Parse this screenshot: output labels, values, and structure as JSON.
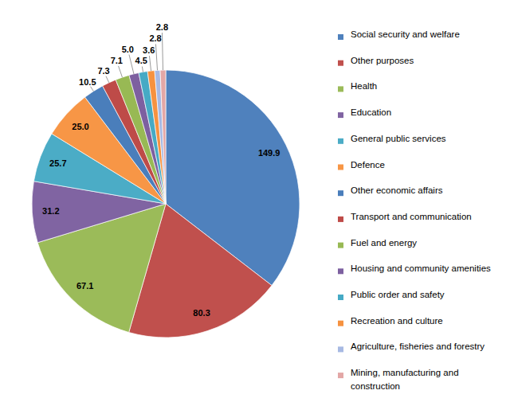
{
  "chart_data": {
    "type": "pie",
    "categories": [
      "Social security and welfare",
      "Other purposes",
      "Health",
      "Education",
      "General public services",
      "Defence",
      "Other economic affairs",
      "Transport and communication",
      "Fuel and energy",
      "Housing and community amenities",
      "Public order and safety",
      "Recreation and culture",
      "Agriculture, fisheries and forestry",
      "Mining, manufacturing and construction"
    ],
    "values": [
      149.9,
      80.3,
      67.1,
      31.2,
      25.7,
      25.0,
      10.5,
      7.3,
      7.1,
      5.0,
      4.5,
      3.6,
      2.8,
      2.8
    ],
    "value_labels": [
      "149.9",
      "80.3",
      "67.1",
      "31.2",
      "25.7",
      "25.0",
      "10.5",
      "7.3",
      "7.1",
      "5.0",
      "4.5",
      "3.6",
      "2.8",
      "2.8"
    ],
    "colors": [
      "#4f81bd",
      "#c0504d",
      "#9bbb59",
      "#8064a2",
      "#4bacc6",
      "#f79646",
      "#4a7ebb",
      "#be4b48",
      "#98b954",
      "#7d60a0",
      "#46aac5",
      "#f69240",
      "#a7b9e3",
      "#e3a7a6"
    ],
    "data_labels": true,
    "legend": "right"
  }
}
